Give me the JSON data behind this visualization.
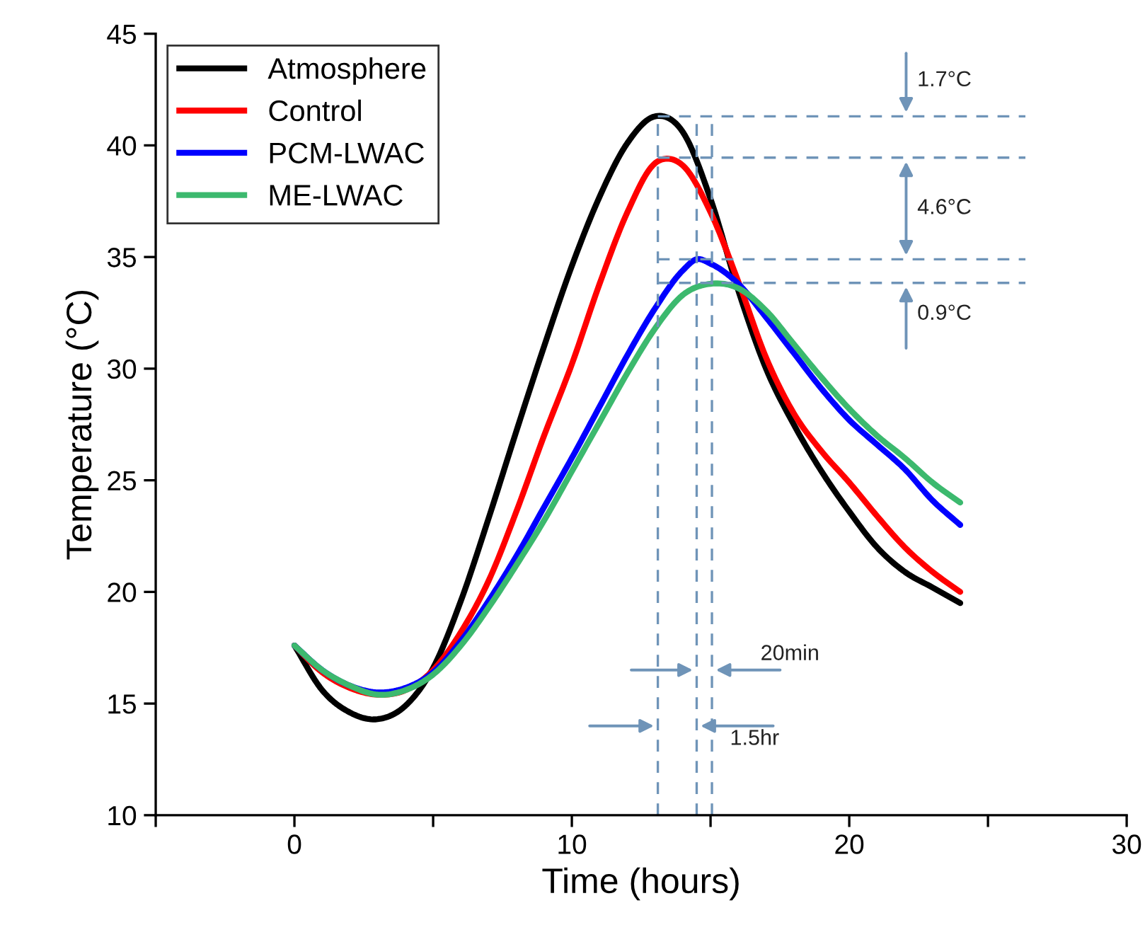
{
  "chart_data": {
    "type": "line",
    "xlabel": "Time (hours)",
    "ylabel": "Temperature (°C)",
    "xlim": [
      -5,
      30
    ],
    "xticks": [
      {
        "value": -5,
        "label": null
      },
      0,
      {
        "value": 5,
        "label": null
      },
      10,
      {
        "value": 15,
        "label": null
      },
      20,
      {
        "value": 25,
        "label": null
      },
      30
    ],
    "ylim": [
      10,
      45
    ],
    "yticks": [
      10,
      15,
      20,
      25,
      30,
      35,
      40,
      45
    ],
    "grid": false,
    "legend": "top left",
    "marker": "none",
    "line_style": "solid",
    "series": [
      {
        "name": "Atmosphere",
        "color": "#000000",
        "x": [
          0,
          1,
          2,
          3,
          4,
          5,
          6,
          7,
          8,
          9,
          10,
          11,
          12,
          13,
          14,
          15,
          16,
          17,
          18,
          19,
          20,
          21,
          22,
          23,
          24
        ],
        "values": [
          17.6,
          15.6,
          14.6,
          14.3,
          14.9,
          16.6,
          19.6,
          23.3,
          27.2,
          31.0,
          34.6,
          37.7,
          40.1,
          41.3,
          40.6,
          37.6,
          33.5,
          30.0,
          27.5,
          25.4,
          23.6,
          22.0,
          20.9,
          20.2,
          19.5
        ]
      },
      {
        "name": "Control",
        "color": "#ff0000",
        "x": [
          0,
          1,
          2,
          3,
          4,
          5,
          6,
          7,
          8,
          9,
          10,
          11,
          12,
          13,
          13.5,
          14,
          15,
          16,
          17,
          18,
          19,
          20,
          21,
          22,
          23,
          24
        ],
        "values": [
          17.6,
          16.4,
          15.7,
          15.4,
          15.6,
          16.5,
          18.2,
          20.5,
          23.6,
          27.0,
          30.2,
          33.8,
          37.0,
          39.2,
          39.4,
          39.1,
          37.0,
          33.9,
          30.5,
          28.0,
          26.3,
          24.9,
          23.4,
          22.0,
          20.9,
          20.0
        ]
      },
      {
        "name": "PCM-LWAC",
        "color": "#0000ff",
        "x": [
          0,
          1,
          2,
          3,
          4,
          5,
          6,
          7,
          8,
          9,
          10,
          11,
          12,
          13,
          14,
          14.5,
          15,
          16,
          17,
          18,
          19,
          20,
          21,
          22,
          23,
          24
        ],
        "values": [
          17.6,
          16.5,
          15.8,
          15.5,
          15.7,
          16.4,
          17.8,
          19.6,
          21.6,
          23.8,
          26.0,
          28.3,
          30.6,
          32.7,
          34.4,
          34.9,
          34.7,
          33.8,
          32.3,
          30.7,
          29.1,
          27.7,
          26.6,
          25.5,
          24.1,
          23.0
        ]
      },
      {
        "name": "ME-LWAC",
        "color": "#3cb96e",
        "x": [
          0,
          1,
          2,
          3,
          4,
          5,
          6,
          7,
          8,
          9,
          10,
          11,
          12,
          13,
          14,
          15,
          16,
          17,
          18,
          19,
          20,
          21,
          22,
          23,
          24
        ],
        "values": [
          17.6,
          16.5,
          15.8,
          15.4,
          15.6,
          16.3,
          17.6,
          19.3,
          21.2,
          23.2,
          25.4,
          27.6,
          29.8,
          31.8,
          33.3,
          33.8,
          33.6,
          32.6,
          31.1,
          29.6,
          28.2,
          27.0,
          26.0,
          24.9,
          24.0
        ]
      }
    ],
    "ref_lines": [
      {
        "axis": "x",
        "value": 13.1,
        "color": "#6f94b8",
        "line_style": "dashed"
      },
      {
        "axis": "x",
        "value": 14.5,
        "color": "#6f94b8",
        "line_style": "dashed"
      },
      {
        "axis": "x",
        "value": 15.05,
        "color": "#6f94b8",
        "line_style": "dashed"
      },
      {
        "axis": "y",
        "value": 41.3,
        "color": "#6f94b8",
        "line_style": "dashed"
      },
      {
        "axis": "y",
        "value": 39.45,
        "color": "#6f94b8",
        "line_style": "dashed"
      },
      {
        "axis": "y",
        "value": 34.9,
        "color": "#6f94b8",
        "line_style": "dashed"
      },
      {
        "axis": "y",
        "value": 33.84,
        "color": "#6f94b8",
        "line_style": "dashed"
      }
    ],
    "annotations": [
      "1.7°C",
      "4.6°C",
      "0.9°C",
      "20min",
      "1.5hr"
    ]
  }
}
